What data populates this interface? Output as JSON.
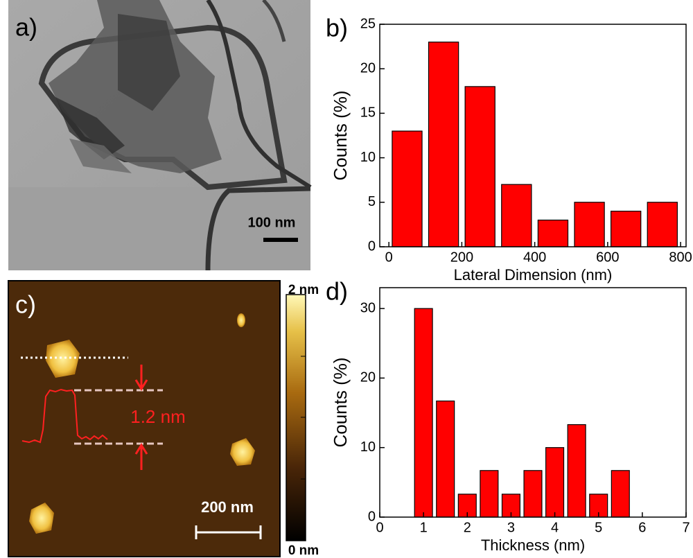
{
  "panels": {
    "a": {
      "label": "a)",
      "scale_bar": "100 nm"
    },
    "c": {
      "label": "c)",
      "scale_bar": "200 nm",
      "step_height": "1.2 nm",
      "colorbar_max": "2 nm",
      "colorbar_min": "0 nm"
    }
  },
  "chart_data": [
    {
      "type": "histogram",
      "label": "b)",
      "xlabel": "Lateral Dimension (nm)",
      "ylabel": "Counts (%)",
      "bins": [
        0,
        100,
        200,
        300,
        400,
        500,
        600,
        700,
        800
      ],
      "values": [
        13,
        23,
        18,
        7,
        3,
        5,
        4,
        5
      ],
      "color": "#ff0000",
      "xlim": [
        -25,
        815
      ],
      "ylim": [
        0,
        25
      ],
      "xticks": [
        0,
        200,
        400,
        600,
        800
      ],
      "yticks": [
        0,
        5,
        10,
        15,
        20,
        25
      ]
    },
    {
      "type": "histogram",
      "label": "d)",
      "xlabel": "Thickness (nm)",
      "ylabel": "Counts (%)",
      "bins": [
        0.75,
        1.25,
        1.75,
        2.25,
        2.75,
        3.25,
        3.75,
        4.25,
        4.75,
        5.25,
        5.75
      ],
      "values": [
        30,
        16.7,
        3.3,
        6.7,
        3.3,
        6.7,
        10,
        13.3,
        3.3,
        6.7
      ],
      "color": "#ff0000",
      "xlim": [
        0,
        7
      ],
      "ylim": [
        0,
        33
      ],
      "xticks": [
        0,
        1,
        2,
        3,
        4,
        5,
        6,
        7
      ],
      "yticks": [
        0,
        10,
        20,
        30
      ]
    }
  ]
}
